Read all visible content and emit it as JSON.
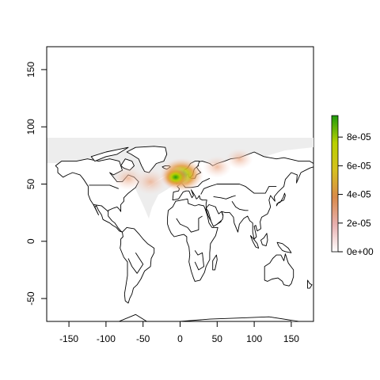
{
  "chart_data": {
    "type": "heatmap",
    "title": "",
    "xlabel": "",
    "ylabel": "",
    "xlim": [
      -180,
      180
    ],
    "ylim": [
      -70,
      170
    ],
    "x_ticks": [
      -150,
      -100,
      -50,
      0,
      50,
      100,
      150
    ],
    "x_tick_labels": [
      "-150",
      "-100",
      "-50",
      "0",
      "50",
      "100",
      "150"
    ],
    "y_ticks": [
      -50,
      0,
      50,
      100,
      150
    ],
    "y_tick_labels": [
      "-50",
      "0",
      "50",
      "100",
      "150"
    ],
    "grid": false,
    "legend": {
      "placement": "right",
      "range": [
        0,
        9.5e-05
      ],
      "ticks": [
        0,
        2e-05,
        4e-05,
        6e-05,
        8e-05
      ],
      "tick_labels": [
        "0e+00",
        "2e-05",
        "4e-05",
        "6e-05",
        "8e-05"
      ],
      "colors": [
        "#ffffff",
        "#e8b0b0",
        "#d98a4a",
        "#d6c020",
        "#b8d000",
        "#1e9b0e"
      ]
    },
    "hotspots": [
      {
        "lon": 2,
        "lat": 58,
        "value": 9e-05
      },
      {
        "lon": -6,
        "lat": 56,
        "value": 4e-05
      },
      {
        "lon": -40,
        "lat": 52,
        "value": 1e-05
      },
      {
        "lon": -70,
        "lat": 55,
        "value": 8e-06
      },
      {
        "lon": 50,
        "lat": 65,
        "value": 6e-06
      },
      {
        "lon": 80,
        "lat": 72,
        "value": 5e-06
      }
    ],
    "background_color": "#ededed"
  }
}
